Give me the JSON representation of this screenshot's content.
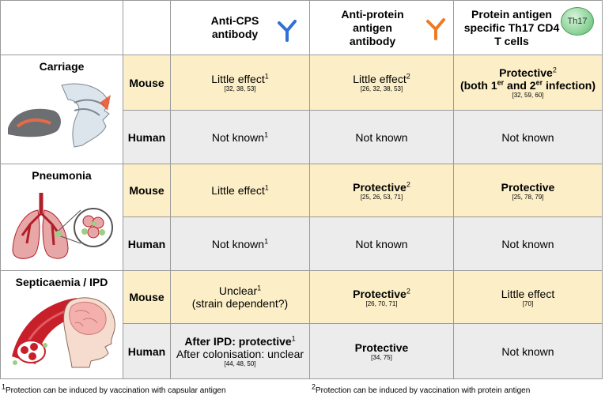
{
  "header": {
    "col1": "Anti-CPS antibody",
    "col2": "Anti-protein antigen antibody",
    "col3": "Protein antigen specific Th17 CD4 T cells",
    "th17_badge": "Th17"
  },
  "rows": {
    "carriage": {
      "title": "Carriage",
      "mouse_label": "Mouse",
      "human_label": "Human",
      "mouse": {
        "c1": "Little effect",
        "c1_sup": "1",
        "c1_ref": "[32, 38, 53]",
        "c2": "Little effect",
        "c2_sup": "2",
        "c2_ref": "[26, 32, 38, 53]",
        "c3_a": "Protective",
        "c3_sup": "2",
        "c3_b1": "(both 1",
        "c3_b1_sup": "er",
        "c3_b2": " and 2",
        "c3_b2_sup": "er",
        "c3_b3": " infection)",
        "c3_ref": "[32, 59, 60]"
      },
      "human": {
        "c1": "Not known",
        "c1_sup": "1",
        "c2": "Not known",
        "c3": "Not known"
      }
    },
    "pneumonia": {
      "title": "Pneumonia",
      "mouse_label": "Mouse",
      "human_label": "Human",
      "mouse": {
        "c1": "Little effect",
        "c1_sup": "1",
        "c2": "Protective",
        "c2_sup": "2",
        "c2_ref": "[25, 26, 53, 71]",
        "c3": "Protective",
        "c3_ref": "[25, 78, 79]"
      },
      "human": {
        "c1": "Not known",
        "c1_sup": "1",
        "c2": "Not known",
        "c3": "Not known"
      }
    },
    "septicaemia": {
      "title": "Septicaemia / IPD",
      "mouse_label": "Mouse",
      "human_label": "Human",
      "mouse": {
        "c1_a": "Unclear",
        "c1_sup": "1",
        "c1_b": "(strain dependent?)",
        "c2": "Protective",
        "c2_sup": "2",
        "c2_ref": "[26, 70, 71]",
        "c3": "Little effect",
        "c3_ref": "[70]"
      },
      "human": {
        "c1_a": "After IPD: protective",
        "c1_sup": "1",
        "c1_b": "After colonisation: unclear",
        "c1_ref": "[44, 48, 50]",
        "c2": "Protective",
        "c2_ref": "[34, 75]",
        "c3": "Not known"
      }
    }
  },
  "footnotes": {
    "f1_sup": "1",
    "f1": "Protection can be induced by vaccination with capsular antigen",
    "f2_sup": "2",
    "f2": "Protection can be induced by vaccination with protein antigen"
  },
  "colors": {
    "mouse_bg": "#fcefc7",
    "human_bg": "#ececec",
    "anti_cps_antibody": "#2f6fd6",
    "anti_protein_antibody": "#ef7a26",
    "th17_cell": "#8ed49a",
    "blood_red": "#c8202a"
  },
  "icons": [
    "antibody-blue-icon",
    "antibody-orange-icon",
    "th17-cell-icon",
    "nasal-cavity-illustration",
    "lungs-illustration",
    "blood-vessel-brain-illustration"
  ]
}
